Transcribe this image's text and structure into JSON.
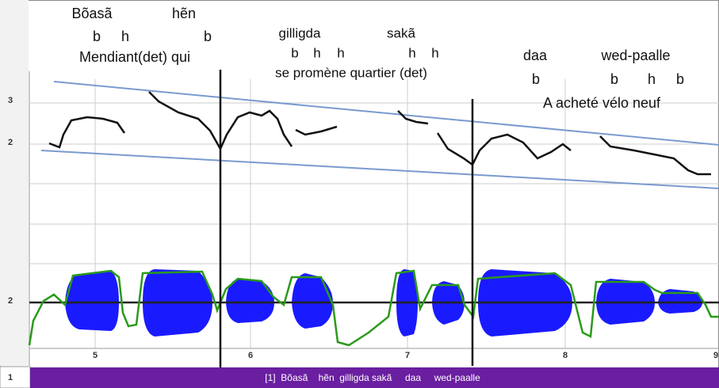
{
  "glosses": {
    "line1": [
      "Bõasã",
      "hẽn"
    ],
    "tones1": [
      "b",
      "h",
      "b"
    ],
    "gloss1": "Mendiant(det) qui",
    "line2": [
      "gilligda",
      "sakã"
    ],
    "tones2": [
      "b",
      "h",
      "h",
      "h",
      "h"
    ],
    "gloss2": "se promène quartier (det)",
    "line3": [
      "daa",
      "wed-paalle"
    ],
    "tones3": [
      "b",
      "b",
      "h",
      "b"
    ],
    "gloss3": "A acheté vélo neuf"
  },
  "axis": {
    "y_labels": [
      "3",
      "2",
      "2"
    ],
    "x_labels": [
      "5",
      "6",
      "7",
      "8",
      "9"
    ]
  },
  "tier": {
    "number": "1",
    "text": "[1]  Bõasã    hẽn  gilligda sakã     daa     wed-paalle"
  }
}
